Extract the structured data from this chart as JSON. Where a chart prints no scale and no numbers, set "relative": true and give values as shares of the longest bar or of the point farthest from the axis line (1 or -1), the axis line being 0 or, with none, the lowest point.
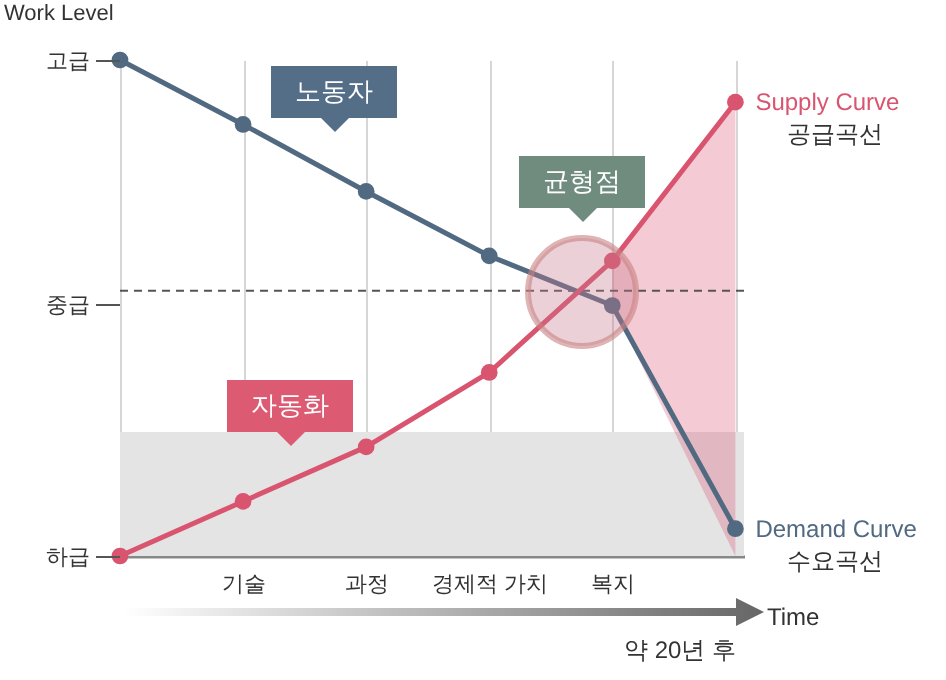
{
  "chart_data": {
    "type": "line",
    "relative": true,
    "ylabel": "Work Level",
    "xlabel": "Time",
    "categories": [
      null,
      "기술",
      "과정",
      "경제적 가치",
      "복지",
      null
    ],
    "series": [
      {
        "name": "Demand Curve\n수요곡선",
        "color": "#516a82",
        "values": [
          1,
          0.87,
          0.735,
          0.605,
          0.505,
          0.055
        ]
      },
      {
        "name": "Supply Curve\n공급곡선",
        "color": "#d9546f",
        "values": [
          0,
          0.11,
          0.22,
          0.37,
          0.595,
          0.915
        ],
        "lower": [
          null,
          null,
          null,
          null,
          0.505,
          0
        ],
        "upper": [
          null,
          null,
          null,
          null,
          0.595,
          0.915
        ]
      }
    ],
    "bands": [
      {
        "axis": "y",
        "from": 0,
        "to": 0.25,
        "color": "#e4e4e4"
      }
    ],
    "ref_lines": [
      {
        "axis": "y",
        "value": 0.535,
        "line_style": "dashed"
      }
    ],
    "annotations": [
      "노동자",
      "균형점",
      "자동화",
      "고급",
      "중급",
      "하급",
      "약 20년 후"
    ],
    "grid": "x",
    "marker": "circle",
    "line_style": "solid"
  }
}
